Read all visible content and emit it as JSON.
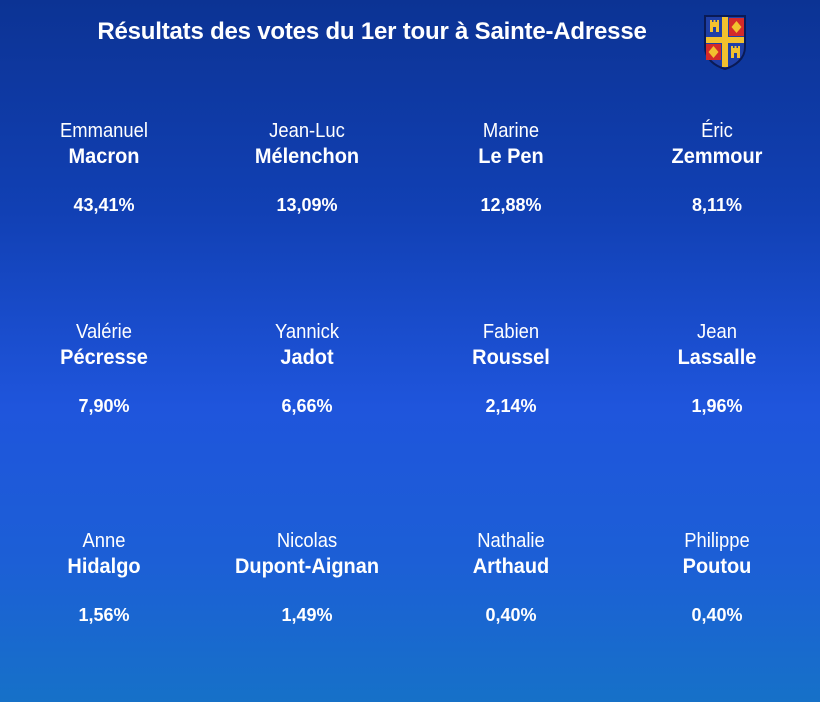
{
  "title": "Résultats des votes du 1er tour à Sainte-Adresse",
  "colors": {
    "background_top": "#0c3394",
    "background_bottom": "#1671c8",
    "text": "#ffffff",
    "crest_blue": "#1f3fa6",
    "crest_gold": "#f2c12e",
    "crest_red": "#d42a2a"
  },
  "candidates": [
    {
      "first_name": "Emmanuel",
      "last_name": "Macron",
      "percentage": "43,41%"
    },
    {
      "first_name": "Jean-Luc",
      "last_name": "Mélenchon",
      "percentage": "13,09%"
    },
    {
      "first_name": "Marine",
      "last_name": "Le Pen",
      "percentage": "12,88%"
    },
    {
      "first_name": "Éric",
      "last_name": "Zemmour",
      "percentage": "8,11%"
    },
    {
      "first_name": "Valérie",
      "last_name": "Pécresse",
      "percentage": "7,90%"
    },
    {
      "first_name": "Yannick",
      "last_name": "Jadot",
      "percentage": "6,66%"
    },
    {
      "first_name": "Fabien",
      "last_name": "Roussel",
      "percentage": "2,14%"
    },
    {
      "first_name": "Jean",
      "last_name": "Lassalle",
      "percentage": "1,96%"
    },
    {
      "first_name": "Anne",
      "last_name": "Hidalgo",
      "percentage": "1,56%"
    },
    {
      "first_name": "Nicolas",
      "last_name": "Dupont-Aignan",
      "percentage": "1,49%"
    },
    {
      "first_name": "Nathalie",
      "last_name": "Arthaud",
      "percentage": "0,40%"
    },
    {
      "first_name": "Philippe",
      "last_name": "Poutou",
      "percentage": "0,40%"
    }
  ]
}
